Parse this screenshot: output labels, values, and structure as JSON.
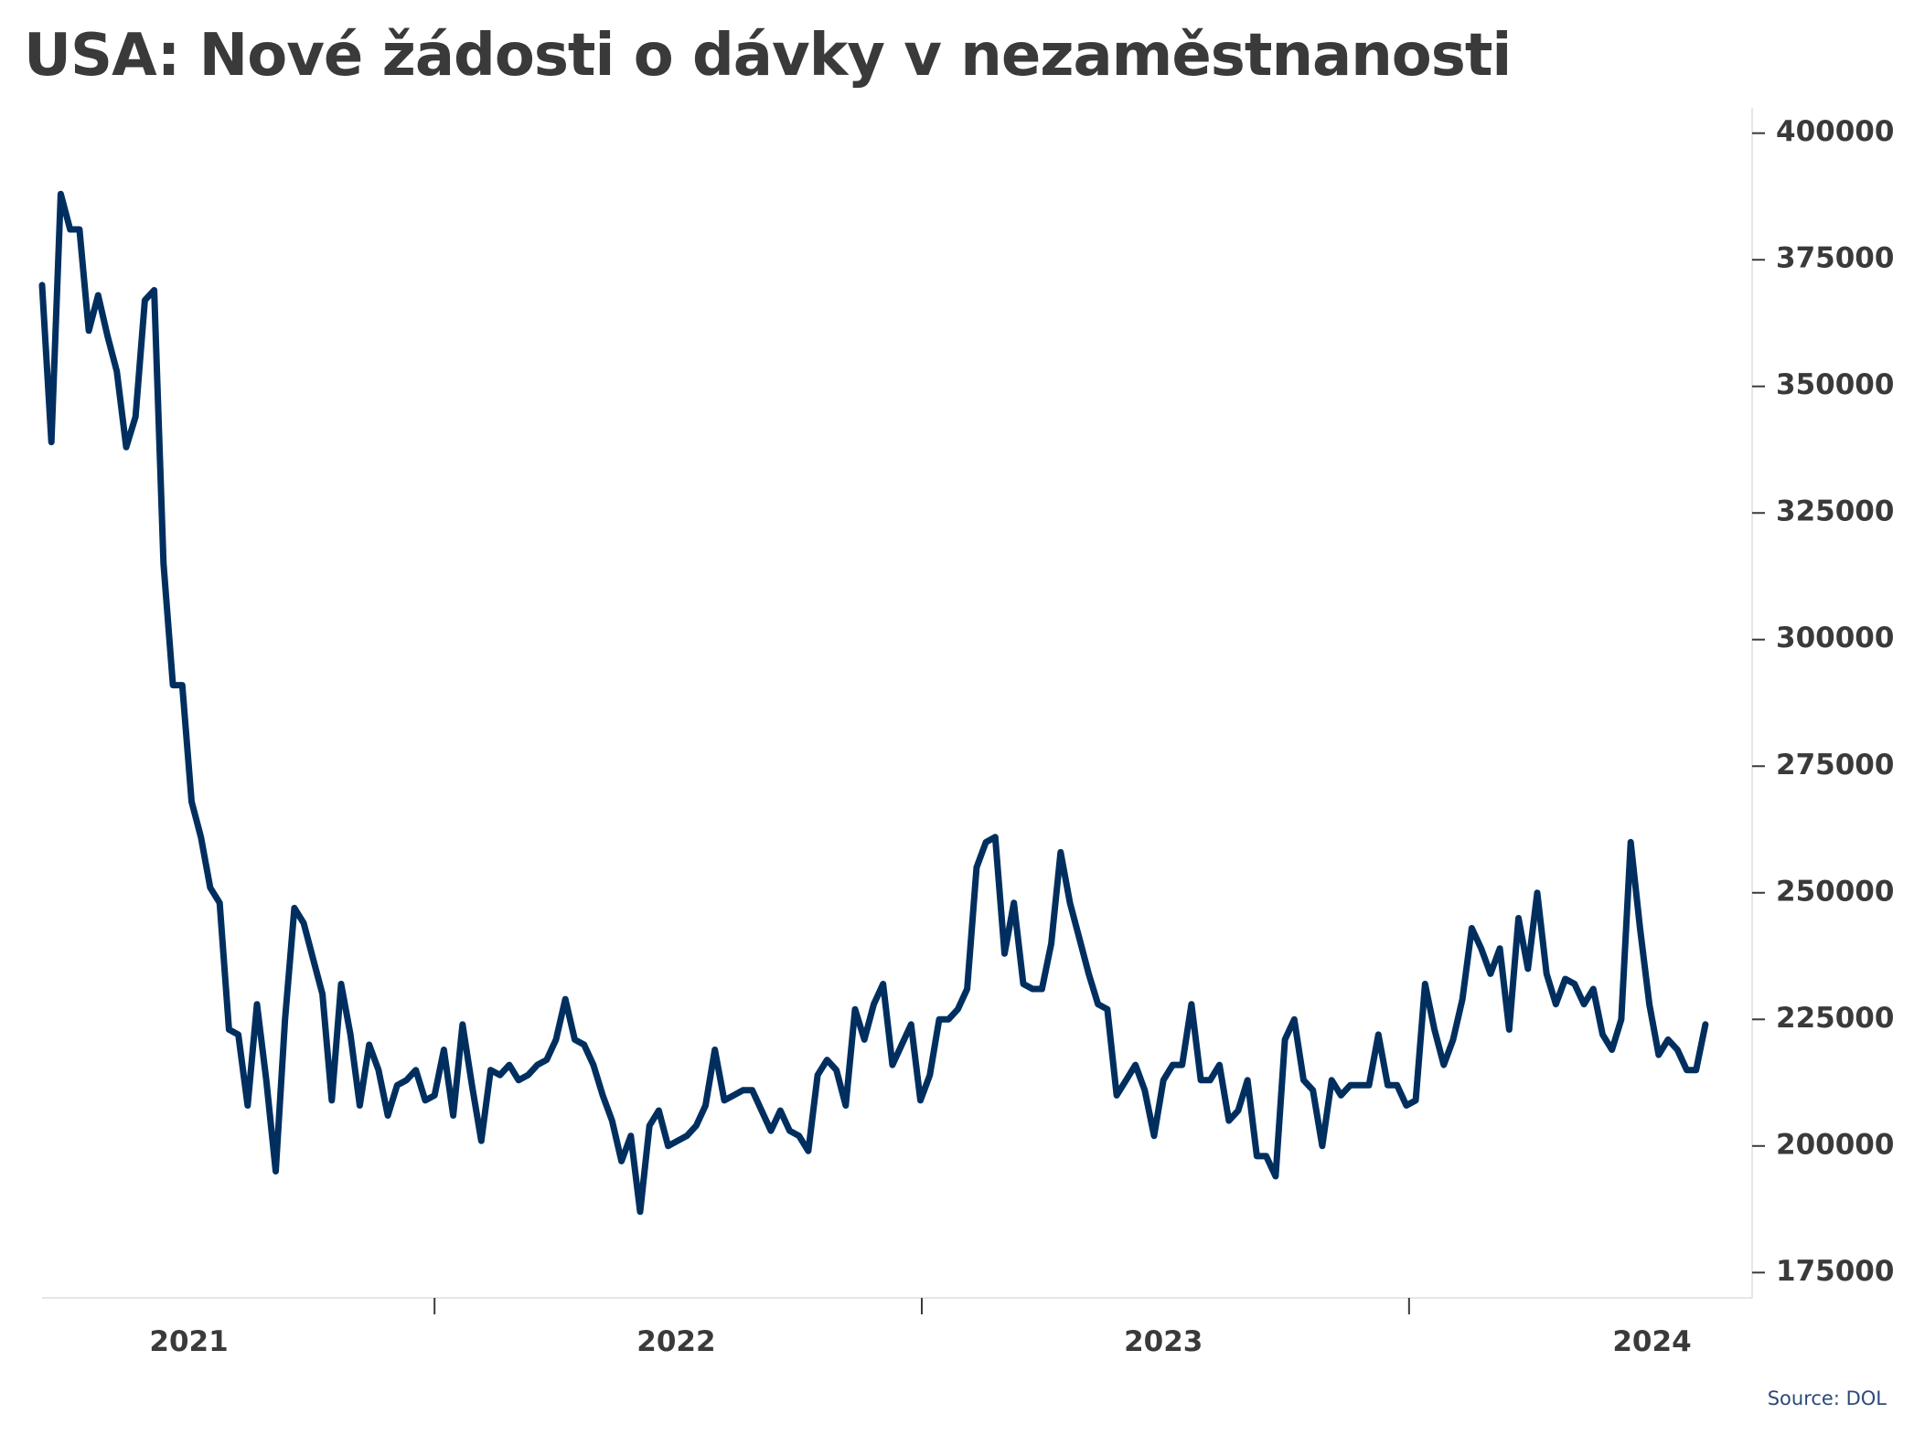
{
  "chart_data": {
    "type": "line",
    "title": "USA: Nové žádosti o dávky v nezaměstnanosti",
    "source": "Source: DOL",
    "color": "#002f5f",
    "grid": false,
    "y_axis_side": "right",
    "ylim": [
      170000,
      405000
    ],
    "yticks": [
      {
        "value": 400000,
        "label": "400000"
      },
      {
        "value": 375000,
        "label": "375000"
      },
      {
        "value": 350000,
        "label": "350000"
      },
      {
        "value": 325000,
        "label": "325000"
      },
      {
        "value": 300000,
        "label": "300000"
      },
      {
        "value": 275000,
        "label": "275000"
      },
      {
        "value": 250000,
        "label": "250000"
      },
      {
        "value": 225000,
        "label": "225000"
      },
      {
        "value": 200000,
        "label": "200000"
      },
      {
        "value": 175000,
        "label": "175000"
      }
    ],
    "xlim": [
      "2021-03-13",
      "2024-09-14"
    ],
    "x_year_boundaries": [
      "2022-01-01",
      "2023-01-01",
      "2024-01-01"
    ],
    "xticks": [
      {
        "label": "2021",
        "value": "2021-07-01"
      },
      {
        "label": "2022",
        "value": "2022-07-01"
      },
      {
        "label": "2023",
        "value": "2023-07-01"
      },
      {
        "label": "2024",
        "value": "2024-07-01"
      }
    ],
    "series": [
      {
        "start": "2021-03-13",
        "interval_days": 7,
        "values": [
          370000,
          339000,
          388000,
          381000,
          381000,
          361000,
          368000,
          360000,
          353000,
          338000,
          344000,
          367000,
          369000,
          315000,
          291000,
          291000,
          268000,
          261000,
          251000,
          248000,
          223000,
          222000,
          208000,
          228000,
          213000,
          195000,
          225000,
          247000,
          244000,
          237000,
          230000,
          209000,
          232000,
          222000,
          208000,
          220000,
          215000,
          206000,
          212000,
          213000,
          215000,
          209000,
          210000,
          219000,
          206000,
          224000,
          212000,
          201000,
          215000,
          214000,
          216000,
          213000,
          214000,
          216000,
          217000,
          221000,
          229000,
          221000,
          220000,
          216000,
          210000,
          205000,
          197000,
          202000,
          187000,
          204000,
          207000,
          200000,
          201000,
          202000,
          204000,
          208000,
          219000,
          209000,
          210000,
          211000,
          211000,
          207000,
          203000,
          207000,
          203000,
          202000,
          199000,
          214000,
          217000,
          215000,
          208000,
          227000,
          221000,
          228000,
          232000,
          216000,
          220000,
          224000,
          209000,
          214000,
          225000,
          225000,
          227000,
          231000,
          255000,
          260000,
          261000,
          238000,
          248000,
          232000,
          231000,
          231000,
          240000,
          258000,
          248000,
          241000,
          234000,
          228000,
          227000,
          210000,
          213000,
          216000,
          211000,
          202000,
          213000,
          216000,
          216000,
          228000,
          213000,
          213000,
          216000,
          205000,
          207000,
          213000,
          198000,
          198000,
          194000,
          221000,
          225000,
          213000,
          211000,
          200000,
          213000,
          210000,
          212000,
          212000,
          212000,
          222000,
          212000,
          212000,
          208000,
          209000,
          232000,
          223000,
          216000,
          221000,
          229000,
          243000,
          239000,
          234000,
          239000,
          223000,
          245000,
          235000,
          250000,
          234000,
          228000,
          233000,
          232000,
          228000,
          231000,
          222000,
          219000,
          225000,
          260000,
          243000,
          228000,
          218000,
          221000,
          219000,
          215000,
          215000,
          224000
        ]
      }
    ]
  }
}
